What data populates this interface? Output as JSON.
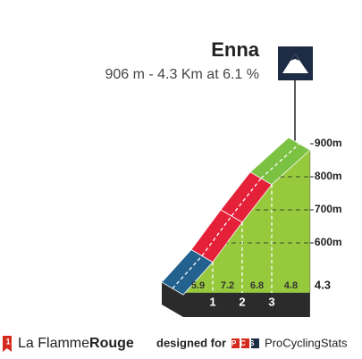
{
  "chart_data": {
    "type": "climb-profile",
    "title": "Enna",
    "subtitle": "906 m - 4.3 Km at 6.1 %",
    "segments": [
      {
        "gradient": 5.9,
        "color": "#23618f"
      },
      {
        "gradient": 7.2,
        "color": "#e5213a"
      },
      {
        "gradient": 6.8,
        "color": "#e5213a"
      },
      {
        "gradient": 4.8,
        "color": "#7cc242"
      }
    ],
    "km_markers": [
      1,
      2,
      3
    ],
    "distance": 4.3,
    "yticks": [
      {
        "value": 600,
        "label": "600m"
      },
      {
        "value": 700,
        "label": "700m"
      },
      {
        "value": 800,
        "label": "800m"
      },
      {
        "value": 900,
        "label": "900m"
      }
    ]
  },
  "footer": {
    "brand_plain": "La Flamme",
    "brand_bold": "Rouge",
    "designed_for": "designed for",
    "pcs": "PCS",
    "site": "ProCyclingStats"
  }
}
